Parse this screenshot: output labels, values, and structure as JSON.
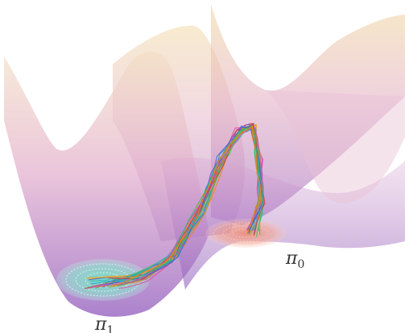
{
  "labels": {
    "target": {
      "symbol": "π",
      "subscript": "0"
    },
    "source": {
      "symbol": "π",
      "subscript": "1"
    }
  },
  "colors": {
    "surface_top": "#f0d9a8",
    "surface_mid": "#e7b8c8",
    "surface_bottom": "#a877c8",
    "source_disk": "#6fe0c2",
    "target_disk": "#f2a08e",
    "path_colors": [
      "#1e9bd6",
      "#e8489a",
      "#4fb848",
      "#f0a020",
      "#7a4fd0",
      "#2ab5b0",
      "#d23a3a",
      "#9a9a20",
      "#3a6ad8",
      "#c45ec0",
      "#27c46a",
      "#ff7f0e"
    ]
  }
}
